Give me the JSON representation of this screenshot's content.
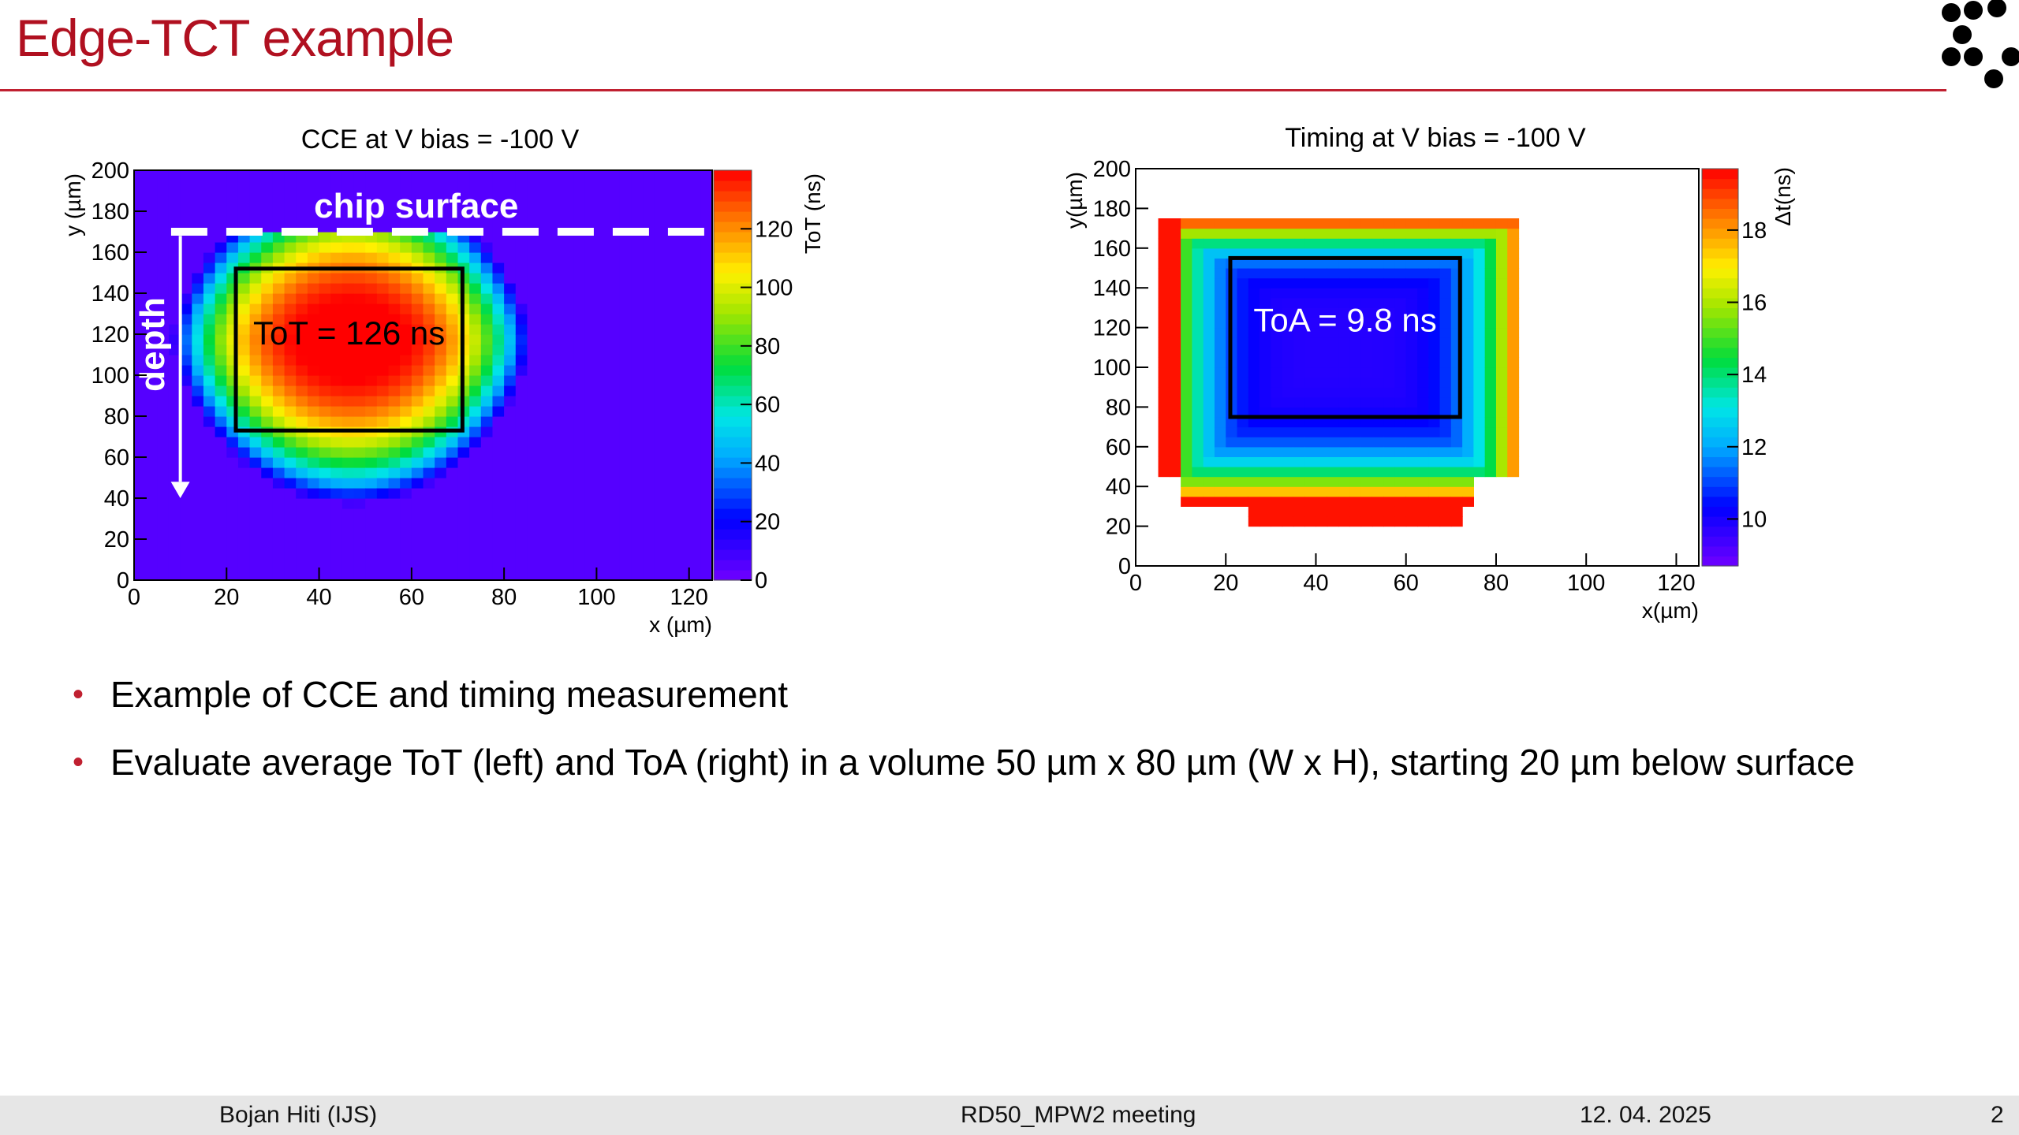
{
  "slide": {
    "title": "Edge-TCT example",
    "bullets": [
      "Example of CCE and timing measurement",
      "Evaluate average ToT (left) and ToA (right) in a volume 50 µm x 80 µm (W x H), starting 20 µm below surface"
    ],
    "footer": {
      "author": "Bojan Hiti (IJS)",
      "meeting": "RD50_MPW2 meeting",
      "date": "12. 04. 2025",
      "page": "2"
    },
    "colors": {
      "title": "#b01020",
      "rule": "#c02030",
      "bullet": "#c02030"
    }
  },
  "chart_data": [
    {
      "type": "heatmap",
      "title": "CCE at V bias = -100 V",
      "xlabel": "x (µm)",
      "ylabel": "y (µm)",
      "zlabel": "ToT (ns)",
      "xlim": [
        0,
        125
      ],
      "ylim": [
        0,
        200
      ],
      "zlim": [
        0,
        140
      ],
      "xticks": [
        0,
        20,
        40,
        60,
        80,
        100,
        120
      ],
      "yticks": [
        0,
        20,
        40,
        60,
        80,
        100,
        120,
        140,
        160,
        180,
        200
      ],
      "zticks": [
        0,
        20,
        40,
        60,
        80,
        100,
        120
      ],
      "background_value": 5,
      "blob": {
        "x_center": 47,
        "x_halfwidth": 36,
        "y_top": 172,
        "y_bottom": 38,
        "peak": 138
      },
      "annotations": {
        "surface_label": "chip surface",
        "surface_y": 170,
        "depth_label": "depth",
        "box_label": "ToT = 126 ns",
        "box": {
          "x0": 22,
          "x1": 71,
          "y0": 73,
          "y1": 152
        }
      }
    },
    {
      "type": "heatmap",
      "title": "Timing at V bias = -100 V",
      "xlabel": "x(µm)",
      "ylabel": "y(µm)",
      "zlabel": "Δt(ns)",
      "xlim": [
        0,
        125
      ],
      "ylim": [
        0,
        200
      ],
      "zlim": [
        8.7,
        19.7
      ],
      "xticks": [
        0,
        20,
        40,
        60,
        80,
        100,
        120
      ],
      "yticks": [
        0,
        20,
        40,
        60,
        80,
        100,
        120,
        140,
        160,
        180,
        200
      ],
      "zticks": [
        10,
        12,
        14,
        16,
        18
      ],
      "center_value": 9.8,
      "edge_value": 19.5,
      "blob": {
        "x0": 5,
        "x1": 86,
        "y_top": 175,
        "y_bottom": 20
      },
      "annotations": {
        "box_label": "ToA = 9.8 ns",
        "box": {
          "x0": 21,
          "x1": 72,
          "y0": 75,
          "y1": 155
        }
      }
    }
  ]
}
